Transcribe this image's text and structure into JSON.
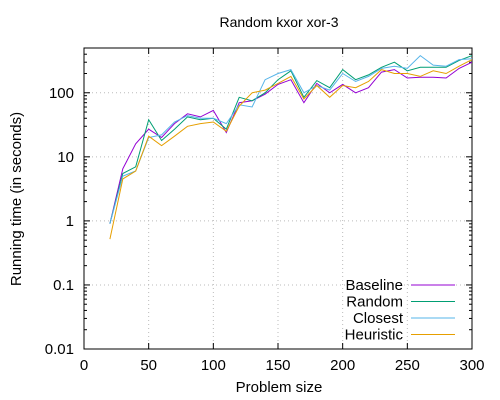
{
  "chart_data": {
    "type": "line",
    "title": "Random kxor xor-3",
    "xlabel": "Problem size",
    "ylabel": "Running time (in seconds)",
    "xlim": [
      0,
      300
    ],
    "ylim": [
      0.01,
      500
    ],
    "yscale": "log",
    "grid": true,
    "legend_position": "bottom-right",
    "x_ticks": [
      0,
      50,
      100,
      150,
      200,
      250,
      300
    ],
    "x_tick_labels": [
      "0",
      "50",
      "100",
      "150",
      "200",
      "250",
      "300"
    ],
    "y_ticks": [
      0.01,
      0.1,
      1,
      10,
      100
    ],
    "y_tick_labels": [
      "0.01",
      "0.1",
      "1",
      "10",
      "100"
    ],
    "x": [
      20,
      30,
      40,
      50,
      60,
      70,
      80,
      90,
      100,
      110,
      120,
      130,
      140,
      150,
      160,
      170,
      180,
      190,
      200,
      210,
      220,
      230,
      240,
      250,
      260,
      270,
      280,
      290,
      300
    ],
    "series": [
      {
        "name": "Baseline",
        "color": "#9400d3",
        "values": [
          0.9,
          6.5,
          16,
          27,
          20,
          33,
          47,
          42,
          53,
          24,
          70,
          75,
          95,
          135,
          160,
          70,
          140,
          100,
          135,
          100,
          120,
          210,
          230,
          170,
          175,
          175,
          170,
          240,
          300
        ]
      },
      {
        "name": "Random",
        "color": "#009e73",
        "values": [
          0.9,
          5.5,
          7,
          38,
          18,
          27,
          42,
          38,
          40,
          27,
          85,
          75,
          100,
          160,
          220,
          85,
          155,
          120,
          230,
          160,
          190,
          250,
          300,
          220,
          250,
          250,
          250,
          320,
          380
        ]
      },
      {
        "name": "Closest",
        "color": "#56b4e9",
        "values": [
          0.9,
          5,
          6,
          20,
          22,
          35,
          44,
          40,
          40,
          33,
          65,
          60,
          160,
          200,
          230,
          100,
          130,
          110,
          200,
          150,
          180,
          240,
          260,
          240,
          380,
          270,
          260,
          330,
          340
        ]
      },
      {
        "name": "Heuristic",
        "color": "#e69f00",
        "values": [
          0.52,
          4.5,
          6,
          21,
          15,
          21,
          30,
          33,
          35,
          25,
          62,
          100,
          110,
          140,
          180,
          80,
          130,
          85,
          130,
          120,
          150,
          230,
          200,
          200,
          180,
          220,
          200,
          260,
          330
        ]
      }
    ]
  }
}
